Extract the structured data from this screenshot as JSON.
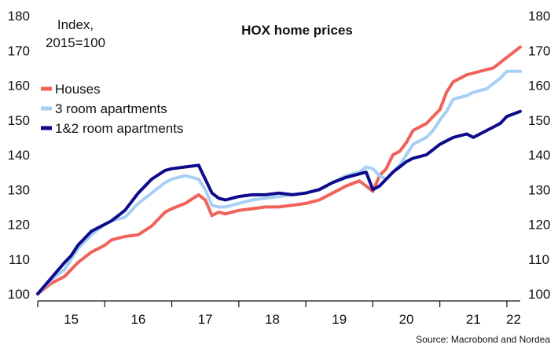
{
  "chart_data": {
    "type": "line",
    "title": "HOX home prices",
    "ylabel_lines": [
      "Index,",
      "2015=100"
    ],
    "source": "Source: Macrobond and Nordea",
    "ylim": [
      100,
      180
    ],
    "y_ticks": [
      100,
      110,
      120,
      130,
      140,
      150,
      160,
      170,
      180
    ],
    "x_range": [
      2015.0,
      2022.2
    ],
    "x_ticks": [
      {
        "label": "15",
        "x": 2015.5
      },
      {
        "label": "16",
        "x": 2016.5
      },
      {
        "label": "17",
        "x": 2017.5
      },
      {
        "label": "18",
        "x": 2018.5
      },
      {
        "label": "19",
        "x": 2019.5
      },
      {
        "label": "20",
        "x": 2020.5
      },
      {
        "label": "21",
        "x": 2021.5
      },
      {
        "label": "22",
        "x": 2022.1
      }
    ],
    "legend_position": "left",
    "series": [
      {
        "name": "Houses",
        "color": "#f0625a",
        "x": [
          2015.0,
          2015.2,
          2015.4,
          2015.5,
          2015.6,
          2015.8,
          2016.0,
          2016.1,
          2016.3,
          2016.5,
          2016.7,
          2016.9,
          2017.0,
          2017.2,
          2017.4,
          2017.5,
          2017.6,
          2017.7,
          2017.8,
          2018.0,
          2018.2,
          2018.4,
          2018.6,
          2018.8,
          2019.0,
          2019.2,
          2019.4,
          2019.6,
          2019.8,
          2019.9,
          2020.0,
          2020.1,
          2020.2,
          2020.3,
          2020.4,
          2020.5,
          2020.6,
          2020.8,
          2020.9,
          2021.0,
          2021.1,
          2021.2,
          2021.4,
          2021.5,
          2021.7,
          2021.8,
          2021.9,
          2022.0,
          2022.2
        ],
        "y": [
          100,
          103,
          105,
          107,
          109,
          112,
          114,
          115.5,
          116.5,
          117,
          119.5,
          123.5,
          124.5,
          126,
          128.5,
          127,
          122.5,
          123.5,
          123,
          124,
          124.5,
          125,
          125,
          125.5,
          126,
          127,
          129,
          131,
          132.5,
          131,
          129.5,
          134,
          136,
          140,
          141,
          143.5,
          147,
          149,
          151,
          153,
          158,
          161,
          163,
          163.5,
          164.5,
          165,
          166.5,
          168,
          171
        ]
      },
      {
        "name": "3 room apartments",
        "color": "#a7cff4",
        "x": [
          2015.0,
          2015.2,
          2015.4,
          2015.5,
          2015.6,
          2015.8,
          2016.0,
          2016.1,
          2016.3,
          2016.5,
          2016.7,
          2016.9,
          2017.0,
          2017.2,
          2017.4,
          2017.5,
          2017.6,
          2017.7,
          2017.8,
          2018.0,
          2018.2,
          2018.4,
          2018.6,
          2018.8,
          2019.0,
          2019.2,
          2019.4,
          2019.6,
          2019.8,
          2019.9,
          2020.0,
          2020.1,
          2020.2,
          2020.3,
          2020.4,
          2020.5,
          2020.6,
          2020.8,
          2020.9,
          2021.0,
          2021.1,
          2021.2,
          2021.4,
          2021.5,
          2021.7,
          2021.8,
          2021.9,
          2022.0,
          2022.2
        ],
        "y": [
          100,
          104,
          107,
          110,
          113,
          117,
          120,
          121,
          122,
          126,
          129,
          132,
          133,
          134,
          133,
          130,
          125.5,
          125,
          125,
          126,
          127,
          127.5,
          128,
          128.5,
          129,
          130,
          132,
          134,
          135,
          136.5,
          136,
          134,
          133,
          135,
          137,
          140,
          143,
          145,
          147,
          150,
          152.5,
          156,
          157,
          158,
          159,
          160.5,
          162,
          164,
          164
        ]
      },
      {
        "name": "1&2 room apartments",
        "color": "#0d0a8c",
        "x": [
          2015.0,
          2015.2,
          2015.4,
          2015.5,
          2015.6,
          2015.8,
          2016.0,
          2016.1,
          2016.3,
          2016.5,
          2016.7,
          2016.9,
          2017.0,
          2017.2,
          2017.4,
          2017.5,
          2017.6,
          2017.7,
          2017.8,
          2018.0,
          2018.2,
          2018.4,
          2018.6,
          2018.8,
          2019.0,
          2019.2,
          2019.4,
          2019.6,
          2019.8,
          2019.9,
          2020.0,
          2020.1,
          2020.2,
          2020.3,
          2020.4,
          2020.5,
          2020.6,
          2020.8,
          2020.9,
          2021.0,
          2021.1,
          2021.2,
          2021.4,
          2021.5,
          2021.7,
          2021.8,
          2021.9,
          2022.0,
          2022.2
        ],
        "y": [
          100,
          104.5,
          109,
          111,
          114,
          118,
          120,
          121,
          124,
          129,
          133,
          135.5,
          136,
          136.5,
          137,
          133,
          129,
          127.5,
          127,
          128,
          128.5,
          128.5,
          129,
          128.5,
          129,
          130,
          132,
          133.5,
          134.5,
          135,
          130,
          131,
          133,
          135,
          136.5,
          138,
          139,
          140,
          141.5,
          143,
          144,
          145,
          146,
          145,
          147,
          148,
          149,
          151,
          152.5
        ]
      }
    ]
  }
}
